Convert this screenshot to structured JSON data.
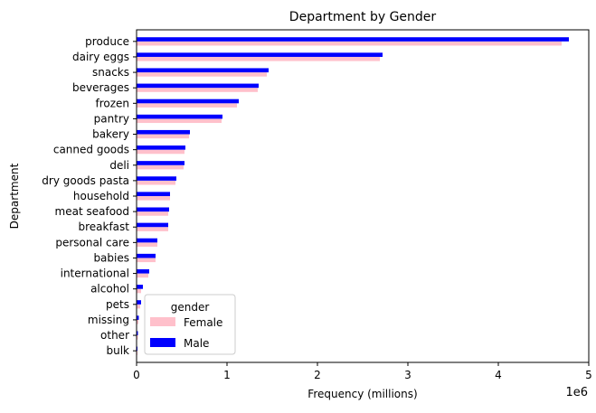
{
  "chart_data": {
    "type": "bar",
    "orientation": "horizontal",
    "title": "Department by Gender",
    "xlabel": "Frequency (millions)",
    "ylabel": "Department",
    "x_offset_label": "1e6",
    "xlim": [
      0,
      5000000
    ],
    "x_ticks": [
      0,
      1000000,
      2000000,
      3000000,
      4000000,
      5000000
    ],
    "x_tick_labels": [
      "0",
      "1",
      "2",
      "3",
      "4",
      "5"
    ],
    "grid": false,
    "legend": {
      "title": "gender",
      "placement": "lower-left"
    },
    "categories": [
      "produce",
      "dairy eggs",
      "snacks",
      "beverages",
      "frozen",
      "pantry",
      "bakery",
      "canned goods",
      "deli",
      "dry goods pasta",
      "household",
      "meat seafood",
      "breakfast",
      "personal care",
      "babies",
      "international",
      "alcohol",
      "pets",
      "missing",
      "other",
      "bulk"
    ],
    "series": [
      {
        "name": "Female",
        "color": "#ffc0cb",
        "values": [
          4700000,
          2690000,
          1440000,
          1340000,
          1110000,
          940000,
          580000,
          530000,
          520000,
          430000,
          370000,
          350000,
          350000,
          230000,
          210000,
          130000,
          50000,
          40000,
          20000,
          15000,
          10000
        ]
      },
      {
        "name": "Male",
        "color": "#0000ff",
        "values": [
          4780000,
          2720000,
          1460000,
          1350000,
          1130000,
          950000,
          590000,
          540000,
          530000,
          440000,
          370000,
          360000,
          350000,
          230000,
          210000,
          140000,
          70000,
          50000,
          25000,
          15000,
          10000
        ]
      }
    ]
  }
}
